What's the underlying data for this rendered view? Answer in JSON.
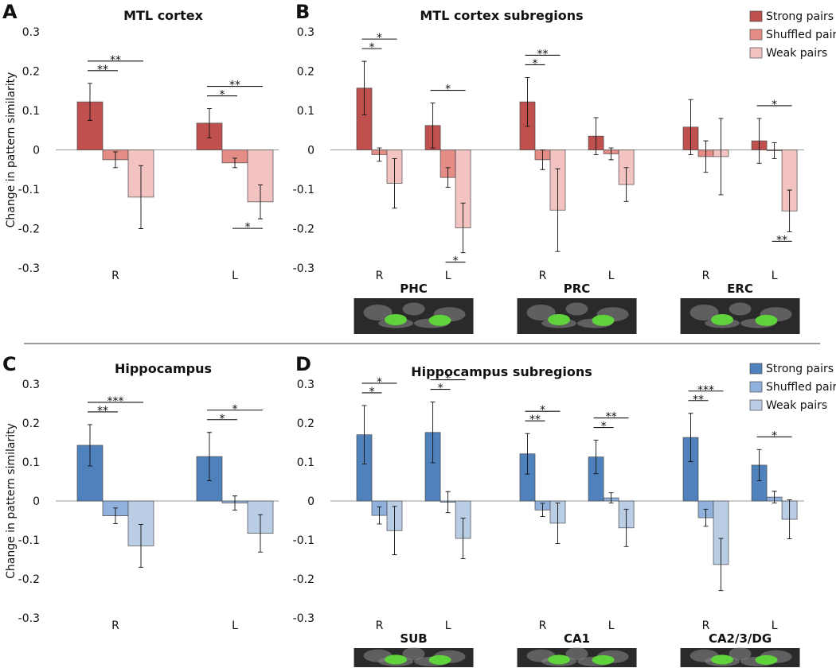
{
  "chart_data": [
    {
      "type": "bar",
      "panel_label": "A",
      "title": "MTL cortex",
      "y_label": "Change in pattern similarity",
      "categories": [
        "R",
        "L"
      ],
      "series": [
        {
          "color": "#c0504d",
          "values": [
            0.122,
            0.068
          ],
          "errors": [
            0.047,
            0.037
          ]
        },
        {
          "color": "#e48c86",
          "values": [
            -0.025,
            -0.033
          ],
          "errors": [
            0.02,
            0.012
          ]
        },
        {
          "color": "#f2c3c1",
          "values": [
            -0.12,
            -0.132
          ],
          "errors": [
            0.08,
            0.043
          ]
        }
      ],
      "ylim": [
        -0.3,
        0.3
      ],
      "yticks": [
        -0.3,
        -0.2,
        -0.1,
        0,
        0.1,
        0.2,
        0.3
      ],
      "brackets": [
        {
          "text": "**",
          "category": 0,
          "series": [
            0,
            1
          ]
        },
        {
          "text": "**",
          "category": 0,
          "series": [
            0,
            2
          ]
        },
        {
          "text": "*",
          "category": 1,
          "series": [
            0,
            1
          ]
        },
        {
          "text": "**",
          "category": 1,
          "series": [
            0,
            2
          ]
        },
        {
          "text": "*",
          "category": 1,
          "series": [
            1,
            2
          ],
          "below": true
        }
      ]
    },
    {
      "type": "bar",
      "panel_label": "B",
      "title": "MTL cortex subregions",
      "categories": [
        "R",
        "L",
        "R",
        "L",
        "R",
        "L"
      ],
      "groups": [
        "PHC",
        "PRC",
        "ERC"
      ],
      "series": [
        {
          "name": "Strong pairs",
          "color": "#c0504d",
          "values": [
            0.157,
            0.062,
            0.122,
            0.035,
            0.058,
            0.023
          ],
          "errors": [
            0.068,
            0.057,
            0.062,
            0.047,
            0.07,
            0.057
          ]
        },
        {
          "name": "Shuffled pairs",
          "color": "#e48c86",
          "values": [
            -0.012,
            -0.07,
            -0.025,
            -0.01,
            -0.017,
            -0.002
          ],
          "errors": [
            0.017,
            0.025,
            0.025,
            0.015,
            0.04,
            0.02
          ]
        },
        {
          "name": "Weak pairs",
          "color": "#f2c3c1",
          "values": [
            -0.085,
            -0.198,
            -0.153,
            -0.088,
            -0.017,
            -0.155
          ],
          "errors": [
            0.063,
            0.063,
            0.105,
            0.043,
            0.097,
            0.053
          ]
        }
      ],
      "legend": "upper right",
      "ylim": [
        -0.3,
        0.3
      ],
      "yticks": [
        -0.3,
        -0.2,
        -0.1,
        0,
        0.1,
        0.2,
        0.3
      ],
      "brackets": [
        {
          "text": "*",
          "category": 0,
          "series": [
            0,
            1
          ]
        },
        {
          "text": "*",
          "category": 0,
          "series": [
            0,
            2
          ]
        },
        {
          "text": "*",
          "category": 1,
          "series": [
            0,
            2
          ]
        },
        {
          "text": "*",
          "category": 1,
          "series": [
            1,
            2
          ],
          "below": true
        },
        {
          "text": "*",
          "category": 2,
          "series": [
            0,
            1
          ]
        },
        {
          "text": "**",
          "category": 2,
          "series": [
            0,
            2
          ]
        },
        {
          "text": "*",
          "category": 5,
          "series": [
            0,
            2
          ]
        },
        {
          "text": "**",
          "category": 5,
          "series": [
            1,
            2
          ],
          "below": true
        }
      ]
    },
    {
      "type": "bar",
      "panel_label": "C",
      "title": "Hippocampus",
      "y_label": "Change in pattern similarity",
      "categories": [
        "R",
        "L"
      ],
      "series": [
        {
          "color": "#4f81bd",
          "values": [
            0.143,
            0.114
          ],
          "errors": [
            0.053,
            0.062
          ]
        },
        {
          "color": "#8fb1dc",
          "values": [
            -0.038,
            -0.005
          ],
          "errors": [
            0.02,
            0.018
          ]
        },
        {
          "color": "#b9cde5",
          "values": [
            -0.115,
            -0.083
          ],
          "errors": [
            0.055,
            0.048
          ]
        }
      ],
      "ylim": [
        -0.3,
        0.3
      ],
      "yticks": [
        -0.3,
        -0.2,
        -0.1,
        0,
        0.1,
        0.2,
        0.3
      ],
      "brackets": [
        {
          "text": "**",
          "category": 0,
          "series": [
            0,
            1
          ]
        },
        {
          "text": "***",
          "category": 0,
          "series": [
            0,
            2
          ]
        },
        {
          "text": "*",
          "category": 1,
          "series": [
            0,
            1
          ]
        },
        {
          "text": "*",
          "category": 1,
          "series": [
            0,
            2
          ]
        }
      ]
    },
    {
      "type": "bar",
      "panel_label": "D",
      "title": "Hippocampus subregions",
      "categories": [
        "R",
        "L",
        "R",
        "L",
        "R",
        "L"
      ],
      "groups": [
        "SUB",
        "CA1",
        "CA2/3/DG"
      ],
      "series": [
        {
          "name": "Strong pairs",
          "color": "#4f81bd",
          "values": [
            0.17,
            0.176,
            0.121,
            0.113,
            0.163,
            0.092
          ],
          "errors": [
            0.075,
            0.078,
            0.052,
            0.043,
            0.062,
            0.04
          ]
        },
        {
          "name": "Shuffled pairs",
          "color": "#8fb1dc",
          "values": [
            -0.037,
            -0.003,
            -0.023,
            0.008,
            -0.043,
            0.01
          ],
          "errors": [
            0.022,
            0.027,
            0.017,
            0.013,
            0.022,
            0.015
          ]
        },
        {
          "name": "Weak pairs",
          "color": "#b9cde5",
          "values": [
            -0.076,
            -0.096,
            -0.057,
            -0.069,
            -0.163,
            -0.047
          ],
          "errors": [
            0.062,
            0.052,
            0.052,
            0.048,
            0.067,
            0.05
          ]
        }
      ],
      "legend": "upper right",
      "ylim": [
        -0.3,
        0.3
      ],
      "yticks": [
        -0.3,
        -0.2,
        -0.1,
        0,
        0.1,
        0.2,
        0.3
      ],
      "brackets": [
        {
          "text": "*",
          "category": 0,
          "series": [
            0,
            1
          ]
        },
        {
          "text": "*",
          "category": 0,
          "series": [
            0,
            2
          ]
        },
        {
          "text": "*",
          "category": 1,
          "series": [
            0,
            1
          ]
        },
        {
          "text": "*",
          "category": 1,
          "series": [
            0,
            2
          ]
        },
        {
          "text": "**",
          "category": 2,
          "series": [
            0,
            1
          ]
        },
        {
          "text": "*",
          "category": 2,
          "series": [
            0,
            2
          ]
        },
        {
          "text": "*",
          "category": 3,
          "series": [
            0,
            1
          ]
        },
        {
          "text": "**",
          "category": 3,
          "series": [
            0,
            2
          ]
        },
        {
          "text": "**",
          "category": 4,
          "series": [
            0,
            1
          ]
        },
        {
          "text": "***",
          "category": 4,
          "series": [
            0,
            2
          ]
        },
        {
          "text": "*",
          "category": 5,
          "series": [
            0,
            2
          ]
        }
      ]
    }
  ]
}
